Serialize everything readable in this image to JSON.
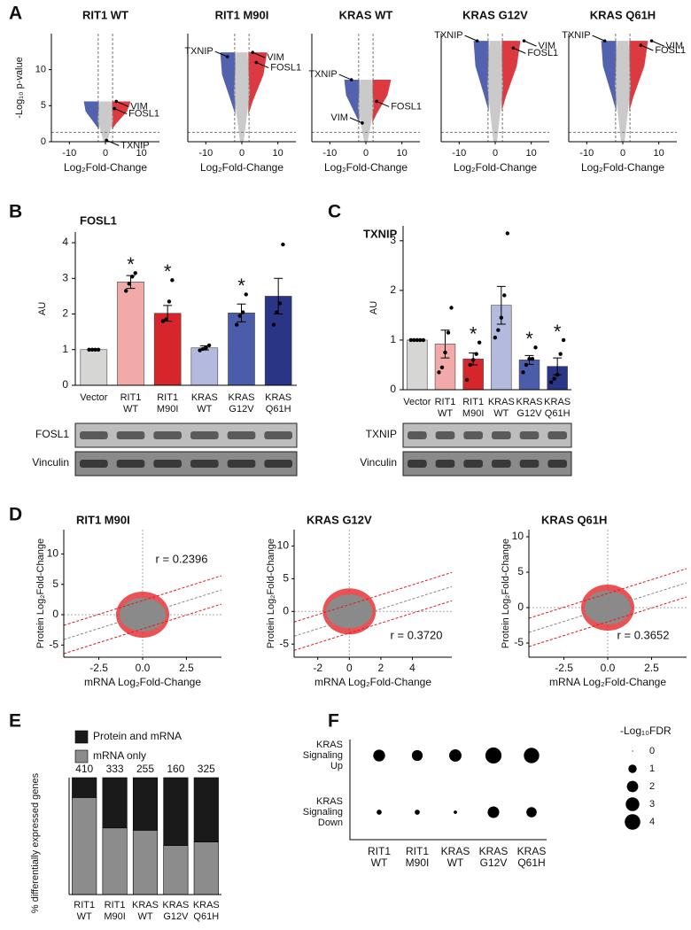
{
  "panel_labels": [
    "A",
    "B",
    "C",
    "D",
    "E",
    "F"
  ],
  "chart_data": [
    {
      "type": "volcano",
      "title": "RIT1 WT",
      "xlabel": "Log₂Fold-Change",
      "ylabel": "-Log₁₀ p-value",
      "xlim": [
        -15,
        15
      ],
      "ylim": [
        0,
        15
      ],
      "xticks": [
        -10,
        0,
        10
      ],
      "yticks": [
        0,
        5,
        10
      ],
      "thresholds_x": [
        -2,
        2
      ],
      "threshold_y": 1.3,
      "colors": {
        "down": "#3f51a6",
        "up": "#d7262b",
        "ns": "#c4c4c4"
      },
      "genes": [
        {
          "label": "VIM",
          "x": 3,
          "y": 5.6
        },
        {
          "label": "FOSL1",
          "x": 2.5,
          "y": 4.6
        },
        {
          "label": "TXNIP",
          "x": 0.3,
          "y": 0.2
        }
      ]
    },
    {
      "type": "volcano",
      "title": "RIT1 M90I",
      "xlabel": "Log₂Fold-Change",
      "xlim": [
        -15,
        15
      ],
      "ylim": [
        0,
        15
      ],
      "xticks": [
        -10,
        0,
        10
      ],
      "thresholds_x": [
        -2,
        2
      ],
      "threshold_y": 1.3,
      "colors": {
        "down": "#3f51a6",
        "up": "#d7262b",
        "ns": "#c4c4c4"
      },
      "genes": [
        {
          "label": "TXNIP",
          "x": -4,
          "y": 11.8
        },
        {
          "label": "VIM",
          "x": 3,
          "y": 12.4
        },
        {
          "label": "FOSL1",
          "x": 4,
          "y": 11
        }
      ]
    },
    {
      "type": "volcano",
      "title": "KRAS WT",
      "xlabel": "Log₂Fold-Change",
      "xlim": [
        -15,
        15
      ],
      "ylim": [
        0,
        15
      ],
      "xticks": [
        -10,
        0,
        10
      ],
      "thresholds_x": [
        -2,
        2
      ],
      "threshold_y": 1.3,
      "colors": {
        "down": "#3f51a6",
        "up": "#d7262b",
        "ns": "#c4c4c4"
      },
      "genes": [
        {
          "label": "TXNIP",
          "x": -4,
          "y": 8.6
        },
        {
          "label": "FOSL1",
          "x": 3,
          "y": 5.6
        },
        {
          "label": "VIM",
          "x": -1,
          "y": 2.6
        }
      ]
    },
    {
      "type": "volcano",
      "title": "KRAS G12V",
      "xlabel": "Log₂Fold-Change",
      "xlim": [
        -15,
        15
      ],
      "ylim": [
        0,
        15
      ],
      "xticks": [
        -10,
        0,
        10
      ],
      "thresholds_x": [
        -2,
        2
      ],
      "threshold_y": 1.3,
      "colors": {
        "down": "#3f51a6",
        "up": "#d7262b",
        "ns": "#c4c4c4"
      },
      "genes": [
        {
          "label": "TXNIP",
          "x": -5,
          "y": 14
        },
        {
          "label": "VIM",
          "x": 8,
          "y": 14
        },
        {
          "label": "FOSL1",
          "x": 5,
          "y": 13
        }
      ]
    },
    {
      "type": "volcano",
      "title": "KRAS Q61H",
      "xlabel": "Log₂Fold-Change",
      "xlim": [
        -15,
        15
      ],
      "ylim": [
        0,
        15
      ],
      "xticks": [
        -10,
        0,
        10
      ],
      "thresholds_x": [
        -2,
        2
      ],
      "threshold_y": 1.3,
      "colors": {
        "down": "#3f51a6",
        "up": "#d7262b",
        "ns": "#c4c4c4"
      },
      "genes": [
        {
          "label": "TXNIP",
          "x": -5,
          "y": 14
        },
        {
          "label": "VIM",
          "x": 8,
          "y": 14
        },
        {
          "label": "FOSL1",
          "x": 5,
          "y": 13.4
        }
      ]
    },
    {
      "type": "bar",
      "title": "FOSL1",
      "ylabel": "AU",
      "categories": [
        [
          "Vector"
        ],
        [
          "RIT1",
          "WT"
        ],
        [
          "RIT1",
          "M90I"
        ],
        [
          "KRAS",
          "WT"
        ],
        [
          "KRAS",
          "G12V"
        ],
        [
          "KRAS",
          "Q61H"
        ]
      ],
      "values": [
        1,
        2.9,
        2.02,
        1.05,
        2.03,
        2.5
      ],
      "errors": [
        0.02,
        0.18,
        0.22,
        0.06,
        0.25,
        0.5
      ],
      "points": [
        [
          1,
          1,
          1,
          1
        ],
        [
          2.65,
          2.85,
          3.05,
          3.15
        ],
        [
          1.8,
          1.85,
          2.35,
          2.95
        ],
        [
          0.98,
          1.02,
          1.05,
          1.12
        ],
        [
          1.7,
          1.95,
          2.05,
          2.55
        ],
        [
          1.7,
          2.05,
          2.3,
          3.95
        ]
      ],
      "significant": [
        false,
        true,
        true,
        false,
        true,
        false
      ],
      "marker": "*",
      "colors": [
        "#d6d6d4",
        "#f1a9a9",
        "#d7262b",
        "#b4b9de",
        "#4b5cab",
        "#2a3585"
      ],
      "ylim": [
        0,
        4.3
      ],
      "yticks": [
        0,
        1,
        2,
        3,
        4
      ],
      "blot_labels": [
        "FOSL1",
        "Vinculin"
      ]
    },
    {
      "type": "bar",
      "title": "TXNIP",
      "ylabel": "AU",
      "categories": [
        [
          "Vector"
        ],
        [
          "RIT1",
          "WT"
        ],
        [
          "RIT1",
          "M90I"
        ],
        [
          "KRAS",
          "WT"
        ],
        [
          "KRAS",
          "G12V"
        ],
        [
          "KRAS",
          "Q61H"
        ]
      ],
      "values": [
        1,
        0.92,
        0.62,
        1.7,
        0.6,
        0.47
      ],
      "errors": [
        0.01,
        0.28,
        0.12,
        0.38,
        0.09,
        0.17
      ],
      "points": [
        [
          1,
          1,
          1,
          1,
          1
        ],
        [
          0.35,
          0.45,
          0.75,
          1.15,
          1.65
        ],
        [
          0.2,
          0.5,
          0.6,
          0.72,
          0.95
        ],
        [
          1.05,
          1.2,
          1.45,
          1.9,
          3.15
        ],
        [
          0.35,
          0.5,
          0.62,
          0.62,
          0.85
        ],
        [
          0.15,
          0.22,
          0.3,
          0.72,
          1.0
        ]
      ],
      "significant": [
        false,
        false,
        true,
        false,
        true,
        true
      ],
      "marker": "*",
      "colors": [
        "#d6d6d4",
        "#f1a9a9",
        "#d7262b",
        "#b4b9de",
        "#4b5cab",
        "#2a3585"
      ],
      "ylim": [
        0,
        3.3
      ],
      "yticks": [
        0,
        1,
        2,
        3
      ],
      "blot_labels": [
        "TXNIP",
        "Vinculin"
      ]
    },
    {
      "type": "scatter",
      "title": "RIT1 M90I",
      "annotation": "r = 0.2396",
      "xlabel": "mRNA Log₂Fold-Change",
      "ylabel": "Protein Log₂Fold-Change",
      "xlim": [
        -4.5,
        4.5
      ],
      "ylim": [
        -7,
        14
      ],
      "xticks": [
        -2.5,
        {
          "value": 0,
          "label": "0.0"
        },
        2.5
      ],
      "yticks": [
        -5,
        0,
        5,
        10
      ],
      "colors": {
        "ns": "#8a8a8a",
        "sig": "#e3191c"
      }
    },
    {
      "type": "scatter",
      "title": "KRAS G12V",
      "annotation": "r = 0.3720",
      "xlabel": "mRNA Log₂Fold-Change",
      "ylabel": "Protein Log₂Fold-Change",
      "xlim": [
        -3.5,
        6.5
      ],
      "ylim": [
        -7,
        12.5
      ],
      "xticks": [
        -2,
        0,
        2,
        4
      ],
      "yticks": [
        -5,
        0,
        5,
        10
      ],
      "colors": {
        "ns": "#8a8a8a",
        "sig": "#e3191c"
      }
    },
    {
      "type": "scatter",
      "title": "KRAS Q61H",
      "annotation": "r = 0.3652",
      "xlabel": "mRNA Log₂Fold-Change",
      "ylabel": "Protein Log₂Fold-Change",
      "xlim": [
        -4.5,
        4.5
      ],
      "ylim": [
        -7,
        11
      ],
      "xticks": [
        -2.5,
        {
          "value": 0,
          "label": "0.0"
        },
        2.5
      ],
      "yticks": [
        -5,
        0,
        5,
        10
      ],
      "colors": {
        "ns": "#8a8a8a",
        "sig": "#e3191c"
      }
    },
    {
      "type": "stacked",
      "ylabel": "% differentially expressed genes",
      "categories": [
        [
          "RIT1",
          "WT"
        ],
        [
          "RIT1",
          "M90I"
        ],
        [
          "KRAS",
          "WT"
        ],
        [
          "KRAS",
          "G12V"
        ],
        [
          "KRAS",
          "Q61H"
        ]
      ],
      "series": [
        {
          "name": "Protein and mRNA",
          "color": "#1a1a1a",
          "values": [
            17,
            43,
            45,
            58,
            55
          ]
        },
        {
          "name": "mRNA only",
          "color": "#8c8c8c",
          "values": [
            83,
            57,
            55,
            42,
            45
          ]
        }
      ],
      "counts": [
        410,
        333,
        255,
        160,
        325
      ],
      "ylim": [
        0,
        100
      ]
    },
    {
      "type": "dot",
      "rows": [
        [
          "KRAS",
          "Signaling",
          "Up"
        ],
        [
          "KRAS",
          "Signaling",
          "Down"
        ]
      ],
      "categories": [
        [
          "RIT1",
          "WT"
        ],
        [
          "RIT1",
          "M90I"
        ],
        [
          "KRAS",
          "WT"
        ],
        [
          "KRAS",
          "G12V"
        ],
        [
          "KRAS",
          "Q61H"
        ]
      ],
      "values": [
        [
          2.2,
          1.8,
          2.4,
          4.3,
          3.9
        ],
        [
          0.3,
          0.3,
          0.1,
          2.1,
          1.6
        ]
      ],
      "legend_title": "-Log₁₀FDR",
      "legend_sizes": [
        0,
        1,
        2,
        3,
        4
      ],
      "color": "#000000"
    }
  ]
}
